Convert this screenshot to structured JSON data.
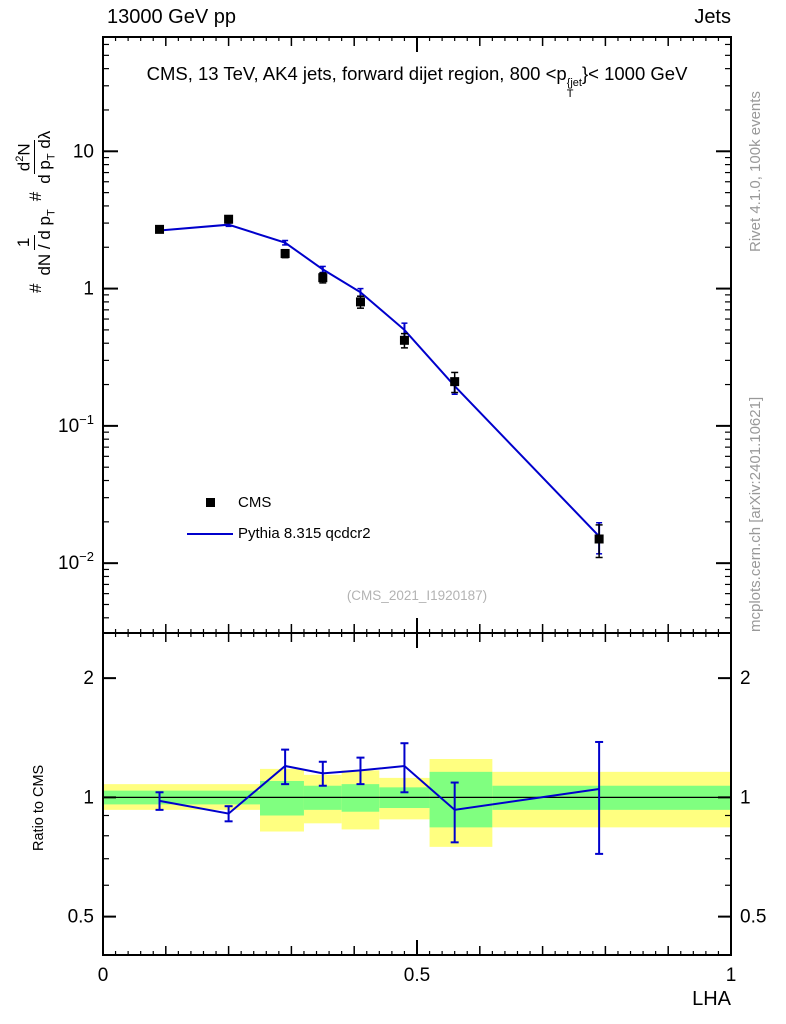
{
  "header": {
    "left": "13000 GeV pp",
    "right": "Jets"
  },
  "title": {
    "pre": "CMS, 13 TeV, AK4 jets, forward dijet region, 800 <p",
    "sup": "{jet",
    "sub": "T",
    "post": "}< 1000 GeV"
  },
  "side": {
    "rivet": "Rivet 4.1.0,  100k events",
    "mcplots": "mcplots.cern.ch [arXiv:2401.10621]"
  },
  "watermark": "(CMS_2021_I1920187)",
  "ratio_label": "Ratio to CMS",
  "ylabel": {
    "hash1": "#",
    "num1": "1",
    "den1a": "dN / d p",
    "den1sub": "T",
    "hash2": "#",
    "num2a": "d",
    "num2sup": "2",
    "num2b": "N",
    "den2a": "d p",
    "den2sub": "T",
    "den2b": " dλ"
  },
  "legend": {
    "items": [
      {
        "label": "CMS",
        "type": "marker"
      },
      {
        "label": "Pythia 8.315 qcdcr2",
        "type": "line"
      }
    ]
  },
  "chart_data": {
    "type": "line",
    "title": "CMS, 13 TeV, AK4 jets, forward dijet region, 800 < pT{jet} < 1000 GeV",
    "xlabel": "LHA",
    "ylabel": "1/(dN/dpT) d2N/(dpT dlambda)",
    "x_range": [
      0,
      1
    ],
    "main_y_range": [
      0.0031,
      68
    ],
    "main_y_log": true,
    "ratio_y_range": [
      0.4,
      2.6
    ],
    "ratio_y_log": true,
    "x": [
      0.09,
      0.2,
      0.29,
      0.35,
      0.41,
      0.48,
      0.56,
      0.79
    ],
    "series": [
      {
        "name": "CMS",
        "type": "data",
        "color": "#000000",
        "y": [
          2.7,
          3.2,
          1.8,
          1.2,
          0.8,
          0.42,
          0.21,
          0.015
        ],
        "yerr": [
          0.12,
          0.15,
          0.12,
          0.1,
          0.08,
          0.05,
          0.035,
          0.004
        ]
      },
      {
        "name": "Pythia 8.315 qcdcr2",
        "type": "mc",
        "color": "#0000cc",
        "y": [
          2.65,
          2.92,
          2.16,
          1.38,
          0.94,
          0.5,
          0.195,
          0.0157
        ],
        "yerr": [
          0.08,
          0.08,
          0.08,
          0.07,
          0.06,
          0.06,
          0.025,
          0.004
        ]
      }
    ],
    "ratio": {
      "values": [
        0.98,
        0.91,
        1.2,
        1.15,
        1.17,
        1.2,
        0.93,
        1.05
      ],
      "err": [
        0.05,
        0.04,
        0.12,
        0.08,
        0.09,
        0.17,
        0.16,
        0.33
      ]
    },
    "bands": [
      {
        "x0": 0.0,
        "x1": 0.25,
        "yellow": [
          0.93,
          1.08
        ],
        "green": [
          0.96,
          1.04
        ]
      },
      {
        "x0": 0.25,
        "x1": 0.32,
        "yellow": [
          0.82,
          1.18
        ],
        "green": [
          0.9,
          1.1
        ]
      },
      {
        "x0": 0.32,
        "x1": 0.38,
        "yellow": [
          0.86,
          1.14
        ],
        "green": [
          0.93,
          1.07
        ]
      },
      {
        "x0": 0.38,
        "x1": 0.44,
        "yellow": [
          0.83,
          1.17
        ],
        "green": [
          0.92,
          1.08
        ]
      },
      {
        "x0": 0.44,
        "x1": 0.52,
        "yellow": [
          0.88,
          1.12
        ],
        "green": [
          0.94,
          1.06
        ]
      },
      {
        "x0": 0.52,
        "x1": 0.62,
        "yellow": [
          0.75,
          1.25
        ],
        "green": [
          0.84,
          1.16
        ]
      },
      {
        "x0": 0.62,
        "x1": 1.0,
        "yellow": [
          0.84,
          1.16
        ],
        "green": [
          0.93,
          1.07
        ]
      }
    ],
    "axes": {
      "x_ticks": [
        {
          "v": 0,
          "label": "0"
        },
        {
          "v": 0.5,
          "label": "0.5"
        },
        {
          "v": 1,
          "label": "1"
        }
      ],
      "main_y_ticks": [
        {
          "v": 10,
          "label": "10"
        },
        {
          "v": 1,
          "label": "1"
        },
        {
          "v": 0.1,
          "label": "10",
          "exp": "−1"
        },
        {
          "v": 0.01,
          "label": "10",
          "exp": "−2"
        }
      ],
      "ratio_y_ticks": [
        {
          "v": 0.5,
          "label": "0.5"
        },
        {
          "v": 1,
          "label": "1"
        },
        {
          "v": 2,
          "label": "2"
        }
      ]
    },
    "colors": {
      "mc": "#0000cc",
      "band_yellow": "#ffff80",
      "band_green": "#80ff80",
      "data": "#000000",
      "ref_line": "#000000"
    }
  }
}
